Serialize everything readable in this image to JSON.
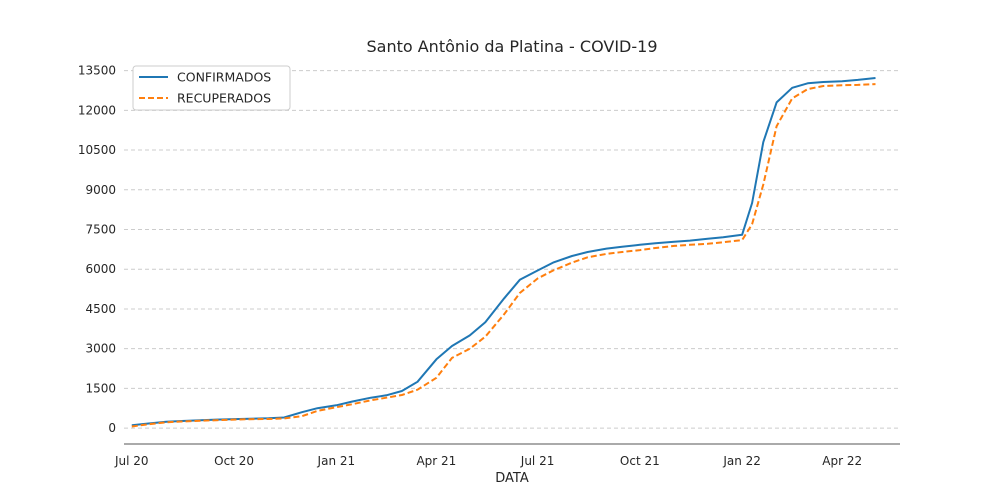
{
  "chart_data": {
    "type": "line",
    "title": "Santo Antônio da Platina - COVID-19",
    "xlabel": "DATA",
    "ylabel": "",
    "grid": "horizontal dashed",
    "legend_position": "top-left",
    "ylim": [
      -600,
      13900
    ],
    "xlim": [
      "2020-06-24",
      "2022-05-23"
    ],
    "y_ticks": [
      0,
      1500,
      3000,
      4500,
      6000,
      7500,
      9000,
      10500,
      12000,
      13500
    ],
    "x_ticks": [
      {
        "date": "2020-07-01",
        "label": "Jul 20"
      },
      {
        "date": "2020-10-01",
        "label": "Oct 20"
      },
      {
        "date": "2021-01-01",
        "label": "Jan 21"
      },
      {
        "date": "2021-04-01",
        "label": "Apr 21"
      },
      {
        "date": "2021-07-01",
        "label": "Jul 21"
      },
      {
        "date": "2021-10-01",
        "label": "Oct 21"
      },
      {
        "date": "2022-01-01",
        "label": "Jan 22"
      },
      {
        "date": "2022-04-01",
        "label": "Apr 22"
      }
    ],
    "series": [
      {
        "name": "CONFIRMADOS",
        "color": "#1f77b4",
        "style": "solid",
        "points": [
          [
            "2020-07-01",
            110
          ],
          [
            "2020-07-15",
            170
          ],
          [
            "2020-08-01",
            240
          ],
          [
            "2020-08-15",
            270
          ],
          [
            "2020-09-01",
            300
          ],
          [
            "2020-09-15",
            320
          ],
          [
            "2020-10-01",
            340
          ],
          [
            "2020-10-15",
            355
          ],
          [
            "2020-11-01",
            370
          ],
          [
            "2020-11-15",
            400
          ],
          [
            "2020-12-01",
            600
          ],
          [
            "2020-12-15",
            750
          ],
          [
            "2021-01-01",
            860
          ],
          [
            "2021-01-15",
            1000
          ],
          [
            "2021-02-01",
            1150
          ],
          [
            "2021-02-15",
            1240
          ],
          [
            "2021-03-01",
            1400
          ],
          [
            "2021-03-15",
            1750
          ],
          [
            "2021-04-01",
            2600
          ],
          [
            "2021-04-15",
            3100
          ],
          [
            "2021-05-01",
            3500
          ],
          [
            "2021-05-15",
            4000
          ],
          [
            "2021-06-01",
            4900
          ],
          [
            "2021-06-15",
            5600
          ],
          [
            "2021-07-01",
            5950
          ],
          [
            "2021-07-15",
            6250
          ],
          [
            "2021-08-01",
            6500
          ],
          [
            "2021-08-15",
            6650
          ],
          [
            "2021-09-01",
            6780
          ],
          [
            "2021-09-15",
            6850
          ],
          [
            "2021-10-01",
            6920
          ],
          [
            "2021-10-15",
            6980
          ],
          [
            "2021-11-01",
            7040
          ],
          [
            "2021-11-15",
            7080
          ],
          [
            "2021-12-01",
            7150
          ],
          [
            "2021-12-15",
            7210
          ],
          [
            "2022-01-01",
            7300
          ],
          [
            "2022-01-10",
            8500
          ],
          [
            "2022-01-20",
            10800
          ],
          [
            "2022-02-01",
            12300
          ],
          [
            "2022-02-15",
            12850
          ],
          [
            "2022-03-01",
            13020
          ],
          [
            "2022-03-15",
            13070
          ],
          [
            "2022-04-01",
            13100
          ],
          [
            "2022-04-15",
            13150
          ],
          [
            "2022-05-01",
            13220
          ]
        ]
      },
      {
        "name": "RECUPERADOS",
        "color": "#ff7f0e",
        "style": "dashed",
        "points": [
          [
            "2020-07-01",
            60
          ],
          [
            "2020-07-15",
            140
          ],
          [
            "2020-08-01",
            220
          ],
          [
            "2020-08-15",
            250
          ],
          [
            "2020-09-01",
            280
          ],
          [
            "2020-09-15",
            300
          ],
          [
            "2020-10-01",
            320
          ],
          [
            "2020-10-15",
            335
          ],
          [
            "2020-11-01",
            345
          ],
          [
            "2020-11-15",
            365
          ],
          [
            "2020-12-01",
            450
          ],
          [
            "2020-12-15",
            650
          ],
          [
            "2021-01-01",
            790
          ],
          [
            "2021-01-15",
            900
          ],
          [
            "2021-02-01",
            1050
          ],
          [
            "2021-02-15",
            1150
          ],
          [
            "2021-03-01",
            1250
          ],
          [
            "2021-03-15",
            1450
          ],
          [
            "2021-04-01",
            1900
          ],
          [
            "2021-04-15",
            2650
          ],
          [
            "2021-05-01",
            3000
          ],
          [
            "2021-05-15",
            3450
          ],
          [
            "2021-06-01",
            4300
          ],
          [
            "2021-06-15",
            5100
          ],
          [
            "2021-07-01",
            5650
          ],
          [
            "2021-07-15",
            5950
          ],
          [
            "2021-08-01",
            6250
          ],
          [
            "2021-08-15",
            6450
          ],
          [
            "2021-09-01",
            6580
          ],
          [
            "2021-09-15",
            6650
          ],
          [
            "2021-10-01",
            6720
          ],
          [
            "2021-10-15",
            6800
          ],
          [
            "2021-11-01",
            6880
          ],
          [
            "2021-11-15",
            6920
          ],
          [
            "2021-12-01",
            6960
          ],
          [
            "2021-12-15",
            7020
          ],
          [
            "2022-01-01",
            7100
          ],
          [
            "2022-01-10",
            7700
          ],
          [
            "2022-01-20",
            9200
          ],
          [
            "2022-02-01",
            11400
          ],
          [
            "2022-02-15",
            12450
          ],
          [
            "2022-03-01",
            12800
          ],
          [
            "2022-03-15",
            12920
          ],
          [
            "2022-04-01",
            12950
          ],
          [
            "2022-04-15",
            12960
          ],
          [
            "2022-05-01",
            12990
          ]
        ]
      }
    ]
  }
}
